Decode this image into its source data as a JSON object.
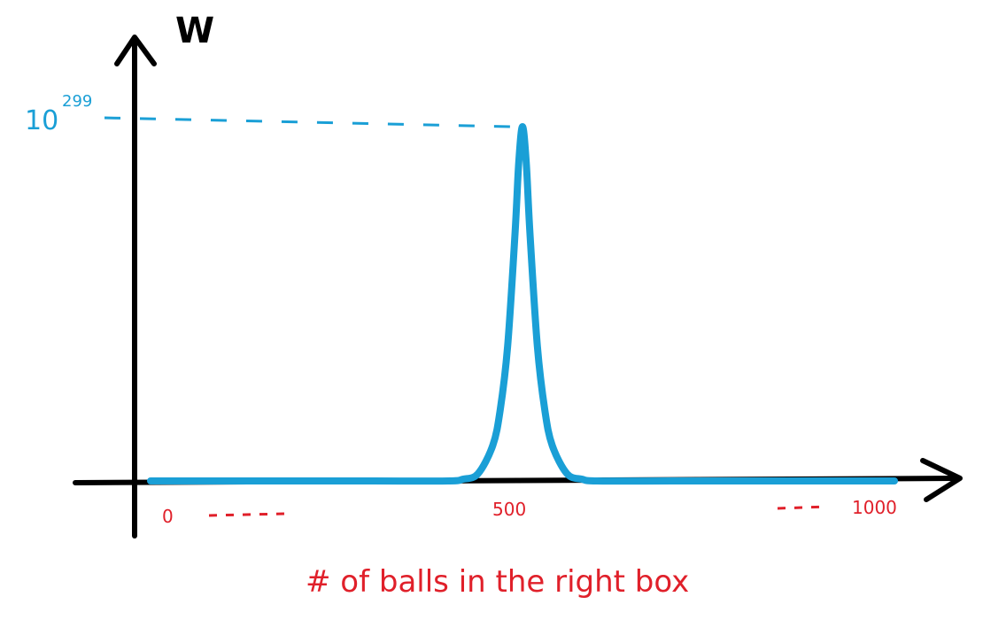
{
  "chart_data": {
    "type": "line",
    "ylabel": "W",
    "xlabel": "# of balls in the right box",
    "xlim": [
      0,
      1000
    ],
    "x_ticks": [
      "0",
      "500",
      "1000"
    ],
    "peak": {
      "x": 500,
      "label_base": "10",
      "label_exponent": "299"
    },
    "series": [
      {
        "x": [
          0,
          100,
          200,
          300,
          400,
          420,
          440,
          460,
          470,
          480,
          490,
          495,
          500,
          505,
          510,
          520,
          530,
          540,
          560,
          580,
          600,
          700,
          800,
          900,
          1000
        ],
        "values": [
          0,
          0,
          0,
          0,
          0,
          0.005,
          0.02,
          0.1,
          0.2,
          0.38,
          0.7,
          0.9,
          1,
          0.9,
          0.7,
          0.38,
          0.2,
          0.1,
          0.02,
          0.005,
          0,
          0,
          0,
          0,
          0
        ]
      }
    ],
    "grid": false,
    "colors": {
      "curve": "#1a9fd6",
      "axis": "#000000",
      "labels": "#e0202a"
    }
  }
}
